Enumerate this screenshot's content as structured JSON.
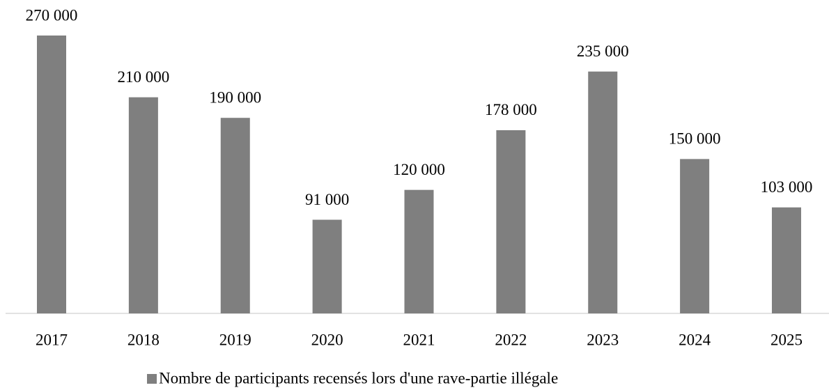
{
  "chart_data": {
    "type": "bar",
    "categories": [
      "2017",
      "2018",
      "2019",
      "2020",
      "2021",
      "2022",
      "2023",
      "2024",
      "2025"
    ],
    "series": [
      {
        "name": "Nombre de participants recensés lors d'une rave-partie illégale",
        "color": "#7f7f7f",
        "values": [
          270000,
          210000,
          190000,
          91000,
          120000,
          178000,
          235000,
          150000,
          103000
        ],
        "value_labels": [
          "270 000",
          "210 000",
          "190 000",
          "91 000",
          "120 000",
          "178 000",
          "235 000",
          "150 000",
          "103 000"
        ]
      }
    ]
  }
}
